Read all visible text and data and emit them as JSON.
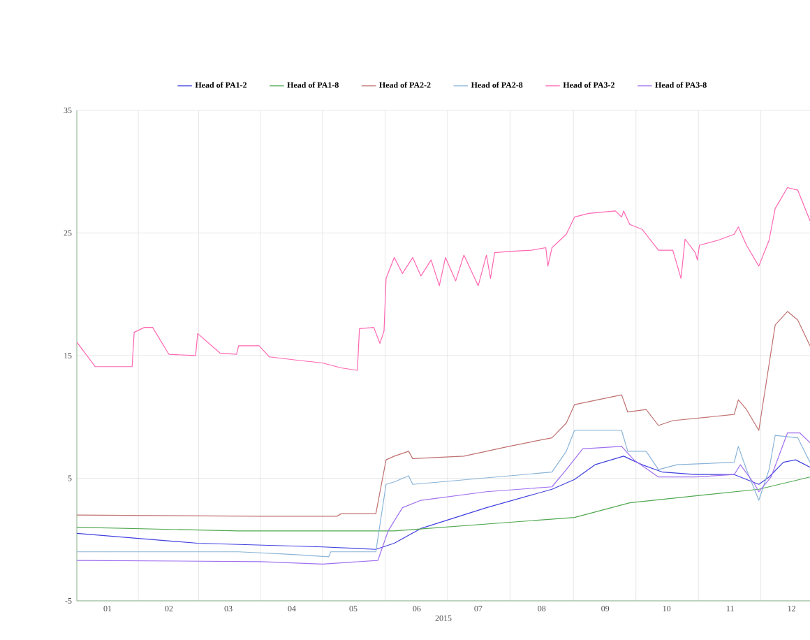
{
  "chart_data": {
    "type": "line",
    "xlabel": "2015",
    "xlim": [
      "2015-01-01",
      "2015-12-25"
    ],
    "ylim": [
      -5,
      35
    ],
    "yticks": [
      -5,
      5,
      15,
      25,
      35
    ],
    "xticks": [
      {
        "value": "2015-01-16",
        "label": "01"
      },
      {
        "value": "2015-02-15",
        "label": "02"
      },
      {
        "value": "2015-03-16",
        "label": "03"
      },
      {
        "value": "2015-04-16",
        "label": "04"
      },
      {
        "value": "2015-05-16",
        "label": "05"
      },
      {
        "value": "2015-06-16",
        "label": "06"
      },
      {
        "value": "2015-07-16",
        "label": "07"
      },
      {
        "value": "2015-08-16",
        "label": "08"
      },
      {
        "value": "2015-09-16",
        "label": "09"
      },
      {
        "value": "2015-10-16",
        "label": "10"
      },
      {
        "value": "2015-11-16",
        "label": "11"
      },
      {
        "value": "2015-12-16",
        "label": "12"
      }
    ],
    "grid": true,
    "legend": "top",
    "marker": "none",
    "line_style": "solid",
    "series": [
      {
        "name": "Head of PA1-2",
        "color": "#4040e0",
        "x": [
          "2015-01-01",
          "2015-03-01",
          "2015-05-01",
          "2015-05-27",
          "2015-06-05",
          "2015-06-18",
          "2015-07-20",
          "2015-08-21",
          "2015-09-01",
          "2015-09-11",
          "2015-09-25",
          "2015-10-04",
          "2015-10-14",
          "2015-10-30",
          "2015-11-18",
          "2015-11-24",
          "2015-11-30",
          "2015-12-05",
          "2015-12-12",
          "2015-12-18",
          "2015-12-25"
        ],
        "values": [
          0.5,
          -0.3,
          -0.6,
          -0.8,
          -0.3,
          0.9,
          2.6,
          4.1,
          4.9,
          6.1,
          6.8,
          6.1,
          5.5,
          5.3,
          5.3,
          4.9,
          4.5,
          5.1,
          6.3,
          6.5,
          5.9
        ]
      },
      {
        "name": "Head of PA1-8",
        "color": "#50a850",
        "x": [
          "2015-01-01",
          "2015-03-21",
          "2015-05-27",
          "2015-06-05",
          "2015-09-01",
          "2015-09-28",
          "2015-11-30",
          "2015-12-25"
        ],
        "values": [
          1.0,
          0.7,
          0.7,
          0.7,
          1.8,
          3.0,
          4.1,
          5.1
        ]
      },
      {
        "name": "Head of PA2-2",
        "color": "#c07070",
        "x": [
          "2015-01-01",
          "2015-04-01",
          "2015-05-08",
          "2015-05-10",
          "2015-05-27",
          "2015-06-01",
          "2015-06-05",
          "2015-06-12",
          "2015-06-14",
          "2015-07-09",
          "2015-07-31",
          "2015-08-21",
          "2015-08-28",
          "2015-09-01",
          "2015-09-24",
          "2015-09-27",
          "2015-10-06",
          "2015-10-12",
          "2015-10-19",
          "2015-11-18",
          "2015-11-20",
          "2015-11-24",
          "2015-11-30",
          "2015-12-08",
          "2015-12-14",
          "2015-12-19",
          "2015-12-25"
        ],
        "values": [
          2.0,
          1.9,
          1.9,
          2.1,
          2.1,
          6.5,
          6.8,
          7.2,
          6.6,
          6.8,
          7.6,
          8.3,
          9.5,
          11.0,
          11.8,
          10.4,
          10.6,
          9.3,
          9.7,
          10.2,
          11.4,
          10.6,
          8.9,
          17.5,
          18.6,
          17.9,
          15.8
        ]
      },
      {
        "name": "Head of PA2-8",
        "color": "#8ab4d8",
        "x": [
          "2015-01-01",
          "2015-03-21",
          "2015-04-15",
          "2015-05-04",
          "2015-05-05",
          "2015-05-27",
          "2015-06-01",
          "2015-06-05",
          "2015-06-12",
          "2015-06-14",
          "2015-08-21",
          "2015-08-28",
          "2015-09-01",
          "2015-09-24",
          "2015-09-27",
          "2015-10-06",
          "2015-10-12",
          "2015-10-21",
          "2015-11-18",
          "2015-11-20",
          "2015-11-24",
          "2015-11-30",
          "2015-12-05",
          "2015-12-08",
          "2015-12-19",
          "2015-12-25"
        ],
        "values": [
          -1.0,
          -1.0,
          -1.2,
          -1.4,
          -1.0,
          -1.0,
          4.5,
          4.7,
          5.2,
          4.5,
          5.5,
          7.2,
          8.9,
          8.9,
          7.2,
          7.2,
          5.7,
          6.1,
          6.3,
          7.6,
          5.7,
          3.2,
          5.7,
          8.5,
          8.3,
          6.3
        ]
      },
      {
        "name": "Head of PA3-2",
        "color": "#ff66b3",
        "x": [
          "2015-01-01",
          "2015-01-10",
          "2015-01-28",
          "2015-01-29",
          "2015-02-03",
          "2015-02-07",
          "2015-02-15",
          "2015-02-28",
          "2015-03-01",
          "2015-03-12",
          "2015-03-20",
          "2015-03-21",
          "2015-03-31",
          "2015-04-05",
          "2015-04-20",
          "2015-05-01",
          "2015-05-10",
          "2015-05-18",
          "2015-05-19",
          "2015-05-26",
          "2015-05-29",
          "2015-05-31",
          "2015-06-01",
          "2015-06-05",
          "2015-06-09",
          "2015-06-14",
          "2015-06-18",
          "2015-06-23",
          "2015-06-27",
          "2015-06-30",
          "2015-07-05",
          "2015-07-09",
          "2015-07-16",
          "2015-07-20",
          "2015-07-22",
          "2015-07-24",
          "2015-07-31",
          "2015-08-11",
          "2015-08-18",
          "2015-08-19",
          "2015-08-21",
          "2015-08-28",
          "2015-09-01",
          "2015-09-08",
          "2015-09-21",
          "2015-09-24",
          "2015-09-25",
          "2015-09-28",
          "2015-10-04",
          "2015-10-12",
          "2015-10-19",
          "2015-10-23",
          "2015-10-25",
          "2015-10-30",
          "2015-10-31",
          "2015-11-01",
          "2015-11-10",
          "2015-11-18",
          "2015-11-20",
          "2015-11-24",
          "2015-11-30",
          "2015-12-05",
          "2015-12-08",
          "2015-12-14",
          "2015-12-19",
          "2015-12-25"
        ],
        "values": [
          16.1,
          14.1,
          14.1,
          16.9,
          17.3,
          17.3,
          15.1,
          15.0,
          16.8,
          15.2,
          15.1,
          15.8,
          15.8,
          14.9,
          14.6,
          14.4,
          14.0,
          13.8,
          17.2,
          17.3,
          16.0,
          17.0,
          21.3,
          23.0,
          21.7,
          23.0,
          21.5,
          22.8,
          20.7,
          23.0,
          21.1,
          23.2,
          20.7,
          23.2,
          21.3,
          23.4,
          23.5,
          23.6,
          23.8,
          22.3,
          23.8,
          24.9,
          26.3,
          26.6,
          26.8,
          26.3,
          26.8,
          25.7,
          25.3,
          23.6,
          23.6,
          21.3,
          24.5,
          23.4,
          22.8,
          24.0,
          24.4,
          24.9,
          25.5,
          24.0,
          22.3,
          24.4,
          27.0,
          28.7,
          28.5,
          26.0
        ]
      },
      {
        "name": "Head of PA3-8",
        "color": "#a070f0",
        "x": [
          "2015-01-01",
          "2015-04-01",
          "2015-05-01",
          "2015-05-28",
          "2015-06-02",
          "2015-06-09",
          "2015-06-18",
          "2015-07-20",
          "2015-08-21",
          "2015-08-28",
          "2015-09-05",
          "2015-09-24",
          "2015-09-30",
          "2015-10-12",
          "2015-10-30",
          "2015-11-18",
          "2015-11-21",
          "2015-11-28",
          "2015-11-30",
          "2015-12-06",
          "2015-12-14",
          "2015-12-20",
          "2015-12-25"
        ],
        "values": [
          -1.7,
          -1.8,
          -2.0,
          -1.7,
          0.7,
          2.6,
          3.2,
          3.9,
          4.3,
          5.7,
          7.4,
          7.6,
          6.5,
          5.1,
          5.1,
          5.3,
          6.1,
          4.5,
          3.9,
          5.1,
          8.7,
          8.7,
          7.9
        ]
      }
    ]
  }
}
